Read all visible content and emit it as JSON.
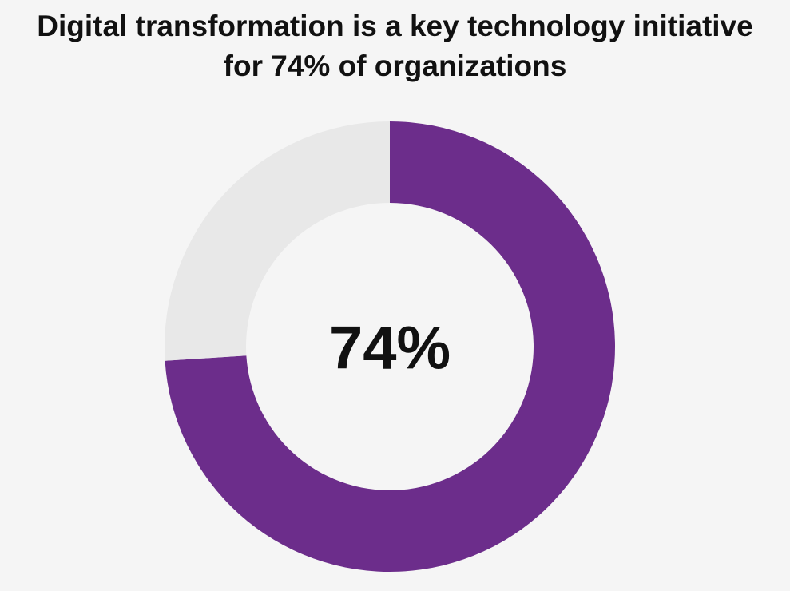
{
  "chart_data": {
    "type": "donut",
    "title": "Digital transformation is a key technology initiative for 74% of organizations",
    "values": [
      74,
      26
    ],
    "value_labels": [
      "74%",
      null
    ],
    "colors": [
      "#6c2d8b",
      "#e8e8e8"
    ]
  }
}
